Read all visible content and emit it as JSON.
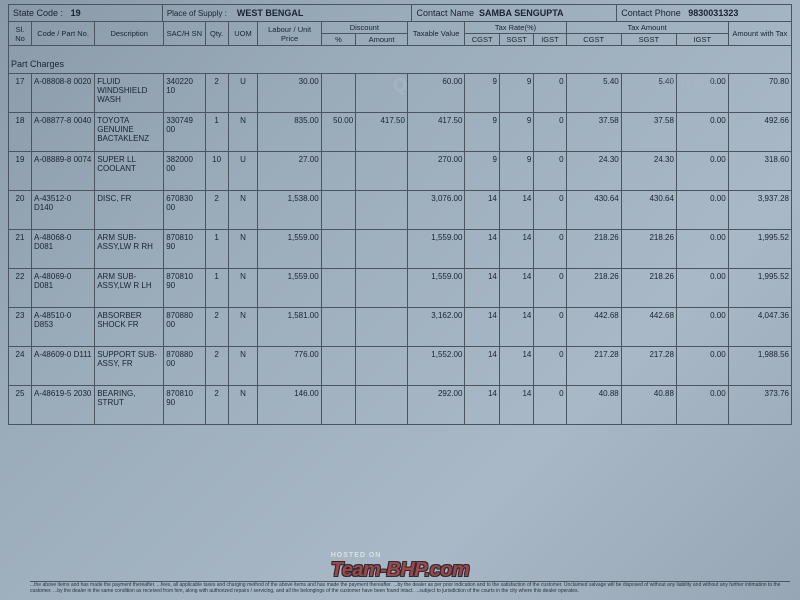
{
  "header": {
    "state_code_label": "State Code :",
    "state_code": "19",
    "place_label": "Place of Supply :",
    "place": "WEST BENGAL",
    "contact_label": "Contact Name",
    "contact": "SAMBA SENGUPTA",
    "phone_label": "Contact Phone",
    "phone": "9830031323"
  },
  "cols": {
    "sl": "Sl. No",
    "code": "Code / Part No.",
    "desc": "Description",
    "sac": "SAC/H SN",
    "qty": "Qty.",
    "uom": "UOM",
    "labour": "Labour / Unit Price",
    "disc": "Discount",
    "disc_pct": "%",
    "disc_amt": "Amount",
    "taxable": "Taxable Value",
    "rate": "Tax Rate(%)",
    "tax_amt": "Tax Amount",
    "amt": "Amount with Tax",
    "cgst": "CGST",
    "sgst": "SGST",
    "igst": "IGST"
  },
  "section": "Part Charges",
  "rows": [
    {
      "sl": "17",
      "code": "A-08808-8 0020",
      "desc": "FLUID WINDSHIELD WASH",
      "sac": "340220 10",
      "qty": "2",
      "uom": "U",
      "price": "30.00",
      "dpct": "",
      "damt": "",
      "tax": "60.00",
      "rc": "9",
      "rs": "9",
      "ri": "0",
      "ac": "5.40",
      "as": "5.40",
      "ai": "0.00",
      "tot": "70.80"
    },
    {
      "sl": "18",
      "code": "A-08877-8 0040",
      "desc": "TOYOTA GENUINE BACTAKLENZ",
      "sac": "330749 00",
      "qty": "1",
      "uom": "N",
      "price": "835.00",
      "dpct": "50.00",
      "damt": "417.50",
      "tax": "417.50",
      "rc": "9",
      "rs": "9",
      "ri": "0",
      "ac": "37.58",
      "as": "37.58",
      "ai": "0.00",
      "tot": "492.66"
    },
    {
      "sl": "19",
      "code": "A-08889-8 0074",
      "desc": "SUPER LL COOLANT",
      "sac": "382000 00",
      "qty": "10",
      "uom": "U",
      "price": "27.00",
      "dpct": "",
      "damt": "",
      "tax": "270.00",
      "rc": "9",
      "rs": "9",
      "ri": "0",
      "ac": "24.30",
      "as": "24.30",
      "ai": "0.00",
      "tot": "318.60"
    },
    {
      "sl": "20",
      "code": "A-43512-0 D140",
      "desc": "DISC, FR",
      "sac": "670830 00",
      "qty": "2",
      "uom": "N",
      "price": "1,538.00",
      "dpct": "",
      "damt": "",
      "tax": "3,076.00",
      "rc": "14",
      "rs": "14",
      "ri": "0",
      "ac": "430.64",
      "as": "430.64",
      "ai": "0.00",
      "tot": "3,937.28"
    },
    {
      "sl": "21",
      "code": "A-48068-0 D081",
      "desc": "ARM SUB-ASSY,LW R RH",
      "sac": "870810 90",
      "qty": "1",
      "uom": "N",
      "price": "1,559.00",
      "dpct": "",
      "damt": "",
      "tax": "1,559.00",
      "rc": "14",
      "rs": "14",
      "ri": "0",
      "ac": "218.26",
      "as": "218.26",
      "ai": "0.00",
      "tot": "1,995.52"
    },
    {
      "sl": "22",
      "code": "A-48069-0 D081",
      "desc": "ARM SUB-ASSY,LW R LH",
      "sac": "870810 90",
      "qty": "1",
      "uom": "N",
      "price": "1,559.00",
      "dpct": "",
      "damt": "",
      "tax": "1,559.00",
      "rc": "14",
      "rs": "14",
      "ri": "0",
      "ac": "218.26",
      "as": "218.26",
      "ai": "0.00",
      "tot": "1,995.52"
    },
    {
      "sl": "23",
      "code": "A-48510-0 D853",
      "desc": "ABSORBER SHOCK FR",
      "sac": "870880 00",
      "qty": "2",
      "uom": "N",
      "price": "1,581.00",
      "dpct": "",
      "damt": "",
      "tax": "3,162.00",
      "rc": "14",
      "rs": "14",
      "ri": "0",
      "ac": "442.68",
      "as": "442.68",
      "ai": "0.00",
      "tot": "4,047.36"
    },
    {
      "sl": "24",
      "code": "A-48609-0 D111",
      "desc": "SUPPORT SUB-ASSY, FR",
      "sac": "870880 00",
      "qty": "2",
      "uom": "N",
      "price": "776.00",
      "dpct": "",
      "damt": "",
      "tax": "1,552.00",
      "rc": "14",
      "rs": "14",
      "ri": "0",
      "ac": "217.28",
      "as": "217.28",
      "ai": "0.00",
      "tot": "1,988.56"
    },
    {
      "sl": "25",
      "code": "A-48619-5 2030",
      "desc": "BEARING, STRUT",
      "sac": "870810 90",
      "qty": "2",
      "uom": "N",
      "price": "146.00",
      "dpct": "",
      "damt": "",
      "tax": "292.00",
      "rc": "14",
      "rs": "14",
      "ri": "0",
      "ac": "40.88",
      "as": "40.88",
      "ai": "0.00",
      "tot": "373.76"
    }
  ],
  "footer": "...the above items and has made the payment thereafter. ...fees, all applicable taxes and charging method of the above items and has made the payment thereafter. ...by the dealer as per prior indication and to the satisfaction of the customer. Unclaimed salvage will be disposed of without any liability and without any further intimation to the customer. ...by the dealer in the same condition as received from him, along with authorized repairs / servicing, and all the belongings of the customer have been found intact. ...subject to jurisdiction of the courts in the city where this dealer operates.",
  "watermark": {
    "host": "HOSTED ON",
    "text": "Team-BHP.com"
  }
}
